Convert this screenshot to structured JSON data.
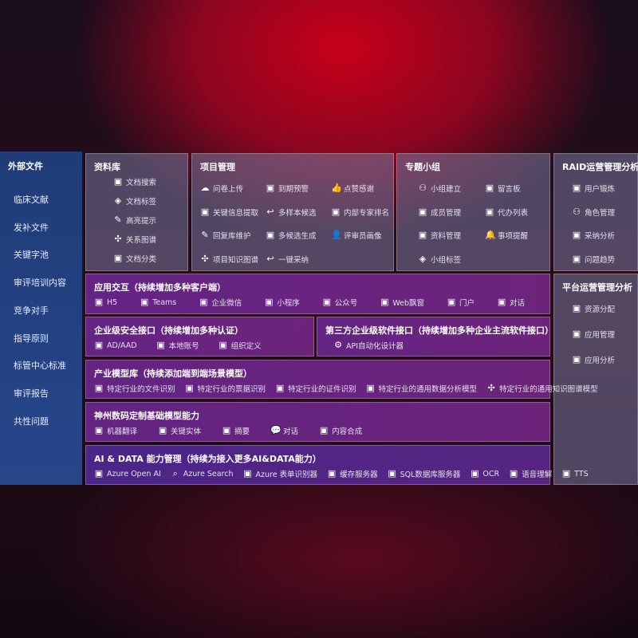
{
  "sidebar": {
    "title": "外部文件",
    "items": [
      "临床文献",
      "发补文件",
      "关键字池",
      "审评培训内容",
      "竞争对手",
      "指导原则",
      "标管中心标准",
      "审评报告",
      "共性问题"
    ]
  },
  "library": {
    "title": "资料库",
    "items": [
      {
        "icon": "document-search-icon",
        "label": "文档搜索"
      },
      {
        "icon": "tag-icon",
        "label": "文档标签"
      },
      {
        "icon": "highlight-pen-icon",
        "label": "高亮提示"
      },
      {
        "icon": "graph-icon",
        "label": "关系图谱"
      },
      {
        "icon": "document-category-icon",
        "label": "文档分类"
      }
    ]
  },
  "project": {
    "title": "项目管理",
    "items": [
      {
        "icon": "cloud-upload-icon",
        "label": "问卷上传"
      },
      {
        "icon": "alarm-icon",
        "label": "到期预警"
      },
      {
        "icon": "thumbs-up-icon",
        "label": "点赞感谢"
      },
      {
        "icon": "info-extract-icon",
        "label": "关键信息提取"
      },
      {
        "icon": "reply-icon",
        "label": "多样本候选"
      },
      {
        "icon": "ranking-icon",
        "label": "内部专家排名"
      },
      {
        "icon": "pen-icon",
        "label": "回复库维护"
      },
      {
        "icon": "puzzle-icon",
        "label": "多候选生成"
      },
      {
        "icon": "user-icon",
        "label": "评审员画像"
      },
      {
        "icon": "graph-icon",
        "label": "项目知识图谱"
      },
      {
        "icon": "reply-icon",
        "label": "一键采纳"
      }
    ]
  },
  "group": {
    "title": "专题小组",
    "items": [
      {
        "icon": "group-icon",
        "label": "小组建立"
      },
      {
        "icon": "bbs-icon",
        "label": "留言板"
      },
      {
        "icon": "user-add-icon",
        "label": "成员管理"
      },
      {
        "icon": "clipboard-icon",
        "label": "代办列表"
      },
      {
        "icon": "folder-icon",
        "label": "资料管理"
      },
      {
        "icon": "bell-icon",
        "label": "事项提醒"
      },
      {
        "icon": "tag-icon",
        "label": "小组标签"
      }
    ]
  },
  "raid": {
    "title": "RAID运营管理分析",
    "items": [
      {
        "icon": "id-card-icon",
        "label": "用户锻炼"
      },
      {
        "icon": "users-icon",
        "label": "角色管理"
      },
      {
        "icon": "qa-icon",
        "label": "采纳分析"
      },
      {
        "icon": "trend-chart-icon",
        "label": "问题趋势"
      }
    ]
  },
  "platform": {
    "title": "平台运营管理分析",
    "items": [
      {
        "icon": "list-icon",
        "label": "资源分配"
      },
      {
        "icon": "apps-icon",
        "label": "应用管理"
      },
      {
        "icon": "analysis-icon",
        "label": "应用分析"
      }
    ]
  },
  "app": {
    "title": "应用交互（持续增加多种客户端）",
    "items": [
      {
        "icon": "html5-icon",
        "label": "H5"
      },
      {
        "icon": "teams-icon",
        "label": "Teams"
      },
      {
        "icon": "wechat-work-icon",
        "label": "企业微信"
      },
      {
        "icon": "mini-program-icon",
        "label": "小程序"
      },
      {
        "icon": "official-account-icon",
        "label": "公众号"
      },
      {
        "icon": "web-window-icon",
        "label": "Web飘窗"
      },
      {
        "icon": "portal-icon",
        "label": "门户"
      },
      {
        "icon": "dialog-icon",
        "label": "对话"
      }
    ]
  },
  "security": {
    "title": "企业级安全接口（持续增加多种认证）",
    "items": [
      {
        "icon": "aad-icon",
        "label": "AD/AAD"
      },
      {
        "icon": "local-account-icon",
        "label": "本地账号"
      },
      {
        "icon": "org-icon",
        "label": "组织定义"
      }
    ]
  },
  "third": {
    "title": "第三方企业级软件接口（持续增加多种企业主流软件接口）",
    "items": [
      {
        "icon": "gear-icon",
        "label": "API自动化设计器"
      }
    ]
  },
  "industry": {
    "title": "产业模型库（持续添加端到端场景模型）",
    "items": [
      {
        "icon": "file-icon",
        "label": "特定行业的文件识别"
      },
      {
        "icon": "receipt-icon",
        "label": "特定行业的票据识别"
      },
      {
        "icon": "id-card-icon",
        "label": "特定行业的证件识别"
      },
      {
        "icon": "chart-icon",
        "label": "特定行业的通用数据分析模型"
      },
      {
        "icon": "graph-icon",
        "label": "特定行业的通用知识图谱模型"
      }
    ]
  },
  "base": {
    "title": "神州数码定制基础模型能力",
    "items": [
      {
        "icon": "translate-icon",
        "label": "机器翻译"
      },
      {
        "icon": "entity-icon",
        "label": "关键实体"
      },
      {
        "icon": "summary-icon",
        "label": "摘要"
      },
      {
        "icon": "chat-icon",
        "label": "对话"
      },
      {
        "icon": "compose-icon",
        "label": "内容合成"
      }
    ]
  },
  "ai": {
    "title": "AI & DATA 能力管理（持续为接入更多AI&DATA能力）",
    "items": [
      {
        "icon": "openai-icon",
        "label": "Azure Open AI"
      },
      {
        "icon": "search-icon",
        "label": "Azure Search"
      },
      {
        "icon": "form-recognizer-icon",
        "label": "Azure 表单识别器"
      },
      {
        "icon": "cache-server-icon",
        "label": "缓存服务器"
      },
      {
        "icon": "database-icon",
        "label": "SQL数据库服务器"
      },
      {
        "icon": "ocr-icon",
        "label": "OCR"
      },
      {
        "icon": "speech-icon",
        "label": "语音理解"
      },
      {
        "icon": "tts-icon",
        "label": "TTS"
      }
    ]
  }
}
